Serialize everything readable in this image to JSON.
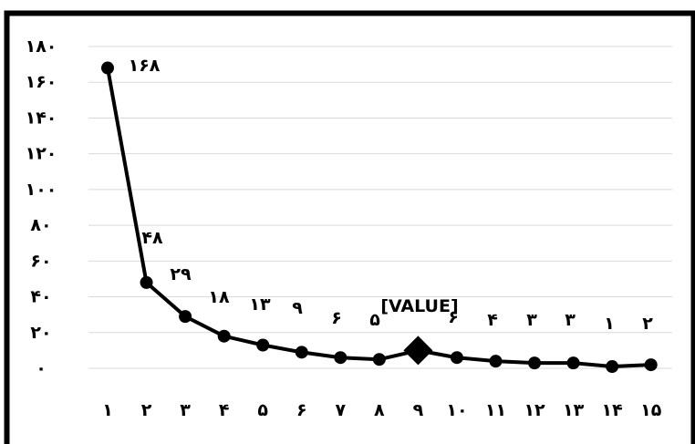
{
  "chart_data": {
    "type": "line",
    "title": "",
    "xlabel": "",
    "ylabel": "",
    "categories": [
      "۱",
      "۲",
      "۳",
      "۴",
      "۵",
      "۶",
      "۷",
      "۸",
      "۹",
      "۱۰",
      "۱۱",
      "۱۲",
      "۱۳",
      "۱۴",
      "۱۵"
    ],
    "values": [
      168,
      48,
      29,
      18,
      13,
      9,
      6,
      5,
      10,
      6,
      4,
      3,
      3,
      1,
      2
    ],
    "data_labels": [
      "۱۶۸",
      "۴۸",
      "۲۹",
      "۱۸",
      "۱۳",
      "۹",
      "۶",
      "۵",
      "[VALUE]",
      "۶",
      "۴",
      "۳",
      "۳",
      "۱",
      "۲"
    ],
    "y_ticks": [
      "۰",
      "۲۰",
      "۴۰",
      "۶۰",
      "۸۰",
      "۱۰۰",
      "۱۲۰",
      "۱۴۰",
      "۱۶۰",
      "۱۸۰"
    ],
    "ylim": [
      0,
      180
    ],
    "grid": true,
    "legend": "none",
    "highlight_index": 8,
    "colors": {
      "line": "#000000",
      "gridline": "#d9d9d9",
      "frame": "#000000",
      "background": "#ffffff"
    }
  }
}
